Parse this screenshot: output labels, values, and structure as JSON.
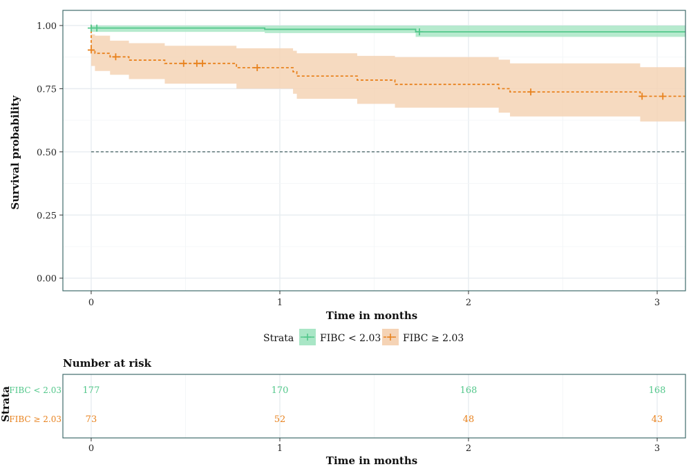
{
  "chart_data": {
    "type": "line",
    "subtype": "kaplan-meier",
    "xlabel": "Time in months",
    "ylabel": "Survival probability",
    "xlim": [
      -0.15,
      3.15
    ],
    "ylim": [
      -0.05,
      1.06
    ],
    "x_ticks": [
      0,
      1,
      2,
      3
    ],
    "y_ticks": [
      0.0,
      0.25,
      0.5,
      0.75,
      1.0
    ],
    "y_tick_labels": [
      "0.00",
      "0.25",
      "0.50",
      "0.75",
      "1.00"
    ],
    "grid": true,
    "reference_line": {
      "y": 0.5,
      "style": "dashed",
      "color": "#2f4f4f"
    },
    "legend": {
      "title": "Strata",
      "position": "bottom"
    },
    "series": [
      {
        "name": "FIBC < 2.03",
        "color": "#52c78a",
        "band_color": "#a9e6c6",
        "line_style": "solid",
        "steps": [
          {
            "x": 0.0,
            "y": 0.99,
            "lo": 0.975,
            "hi": 1.0
          },
          {
            "x": 0.92,
            "y": 0.985,
            "lo": 0.97,
            "hi": 1.0
          },
          {
            "x": 1.72,
            "y": 0.975,
            "lo": 0.955,
            "hi": 1.0
          },
          {
            "x": 3.15,
            "y": 0.975,
            "lo": 0.955,
            "hi": 1.0
          }
        ],
        "censor_x": [
          0.0,
          0.03,
          1.74
        ]
      },
      {
        "name": "FIBC ≥ 2.03",
        "color": "#e8821e",
        "band_color": "#f5d3b5",
        "line_style": "dashed",
        "steps": [
          {
            "x": 0.0,
            "y": 0.903,
            "lo": 0.84,
            "hi": 0.965
          },
          {
            "x": 0.02,
            "y": 0.89,
            "lo": 0.82,
            "hi": 0.96
          },
          {
            "x": 0.1,
            "y": 0.876,
            "lo": 0.805,
            "hi": 0.94
          },
          {
            "x": 0.2,
            "y": 0.863,
            "lo": 0.788,
            "hi": 0.93
          },
          {
            "x": 0.39,
            "y": 0.85,
            "lo": 0.77,
            "hi": 0.92
          },
          {
            "x": 0.77,
            "y": 0.833,
            "lo": 0.75,
            "hi": 0.91
          },
          {
            "x": 1.07,
            "y": 0.817,
            "lo": 0.73,
            "hi": 0.9
          },
          {
            "x": 1.09,
            "y": 0.8,
            "lo": 0.71,
            "hi": 0.89
          },
          {
            "x": 1.41,
            "y": 0.784,
            "lo": 0.69,
            "hi": 0.88
          },
          {
            "x": 1.61,
            "y": 0.767,
            "lo": 0.675,
            "hi": 0.875
          },
          {
            "x": 2.16,
            "y": 0.75,
            "lo": 0.655,
            "hi": 0.865
          },
          {
            "x": 2.22,
            "y": 0.737,
            "lo": 0.64,
            "hi": 0.85
          },
          {
            "x": 2.91,
            "y": 0.72,
            "lo": 0.62,
            "hi": 0.835
          },
          {
            "x": 3.15,
            "y": 0.72,
            "lo": 0.62,
            "hi": 0.835
          }
        ],
        "censor_x": [
          0.0,
          0.13,
          0.49,
          0.56,
          0.59,
          0.88,
          2.33,
          2.92,
          3.03
        ]
      }
    ],
    "risk_table": {
      "title": "Number at risk",
      "ylabel": "Strata",
      "xlabel": "Time in months",
      "times": [
        0,
        1,
        2,
        3
      ],
      "rows": [
        {
          "label": "FIBC < 2.03",
          "color": "#52c78a",
          "values": [
            "177",
            "170",
            "168",
            "168"
          ]
        },
        {
          "label": "FIBC ≥ 2.03",
          "color": "#e8821e",
          "values": [
            "73",
            "52",
            "48",
            "43"
          ]
        }
      ]
    }
  }
}
